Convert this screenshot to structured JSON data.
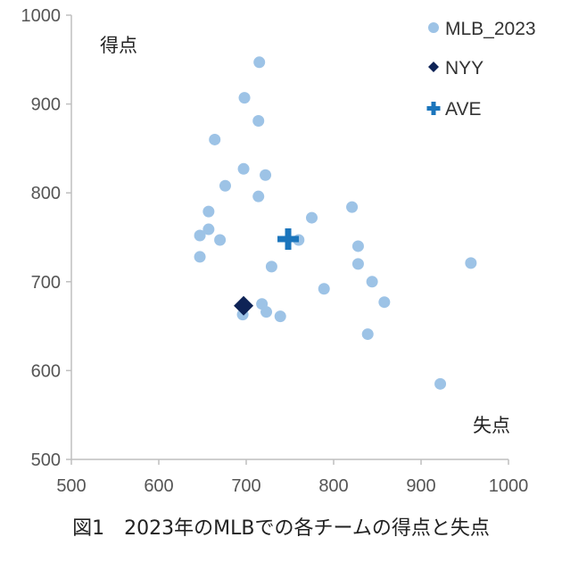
{
  "caption": "図1　2023年のMLBでの各チームの得点と失点",
  "chart_data": {
    "type": "scatter",
    "xlabel": "失点",
    "ylabel": "得点",
    "xlim": [
      500,
      1000
    ],
    "ylim": [
      500,
      1000
    ],
    "x_ticks": [
      500,
      600,
      700,
      800,
      900,
      1000
    ],
    "y_ticks": [
      500,
      600,
      700,
      800,
      900,
      1000
    ],
    "grid": false,
    "legend_position": "top-right",
    "series": [
      {
        "name": "MLB_2023",
        "marker": "circle",
        "color": "#9dc3e6",
        "points": [
          {
            "x": 715,
            "y": 947
          },
          {
            "x": 698,
            "y": 907
          },
          {
            "x": 714,
            "y": 881
          },
          {
            "x": 664,
            "y": 860
          },
          {
            "x": 697,
            "y": 827
          },
          {
            "x": 722,
            "y": 820
          },
          {
            "x": 676,
            "y": 808
          },
          {
            "x": 714,
            "y": 796
          },
          {
            "x": 657,
            "y": 779
          },
          {
            "x": 775,
            "y": 772
          },
          {
            "x": 821,
            "y": 784
          },
          {
            "x": 647,
            "y": 752
          },
          {
            "x": 657,
            "y": 759
          },
          {
            "x": 670,
            "y": 747
          },
          {
            "x": 760,
            "y": 747
          },
          {
            "x": 828,
            "y": 740
          },
          {
            "x": 957,
            "y": 721
          },
          {
            "x": 647,
            "y": 728
          },
          {
            "x": 729,
            "y": 717
          },
          {
            "x": 828,
            "y": 720
          },
          {
            "x": 844,
            "y": 700
          },
          {
            "x": 789,
            "y": 692
          },
          {
            "x": 858,
            "y": 677
          },
          {
            "x": 718,
            "y": 675
          },
          {
            "x": 723,
            "y": 666
          },
          {
            "x": 739,
            "y": 661
          },
          {
            "x": 696,
            "y": 663
          },
          {
            "x": 839,
            "y": 641
          },
          {
            "x": 922,
            "y": 585
          }
        ]
      },
      {
        "name": "NYY",
        "marker": "diamond",
        "color": "#0e2356",
        "points": [
          {
            "x": 697,
            "y": 673
          }
        ]
      },
      {
        "name": "AVE",
        "marker": "cross",
        "color": "#1b75bc",
        "points": [
          {
            "x": 748,
            "y": 748
          }
        ]
      }
    ]
  }
}
